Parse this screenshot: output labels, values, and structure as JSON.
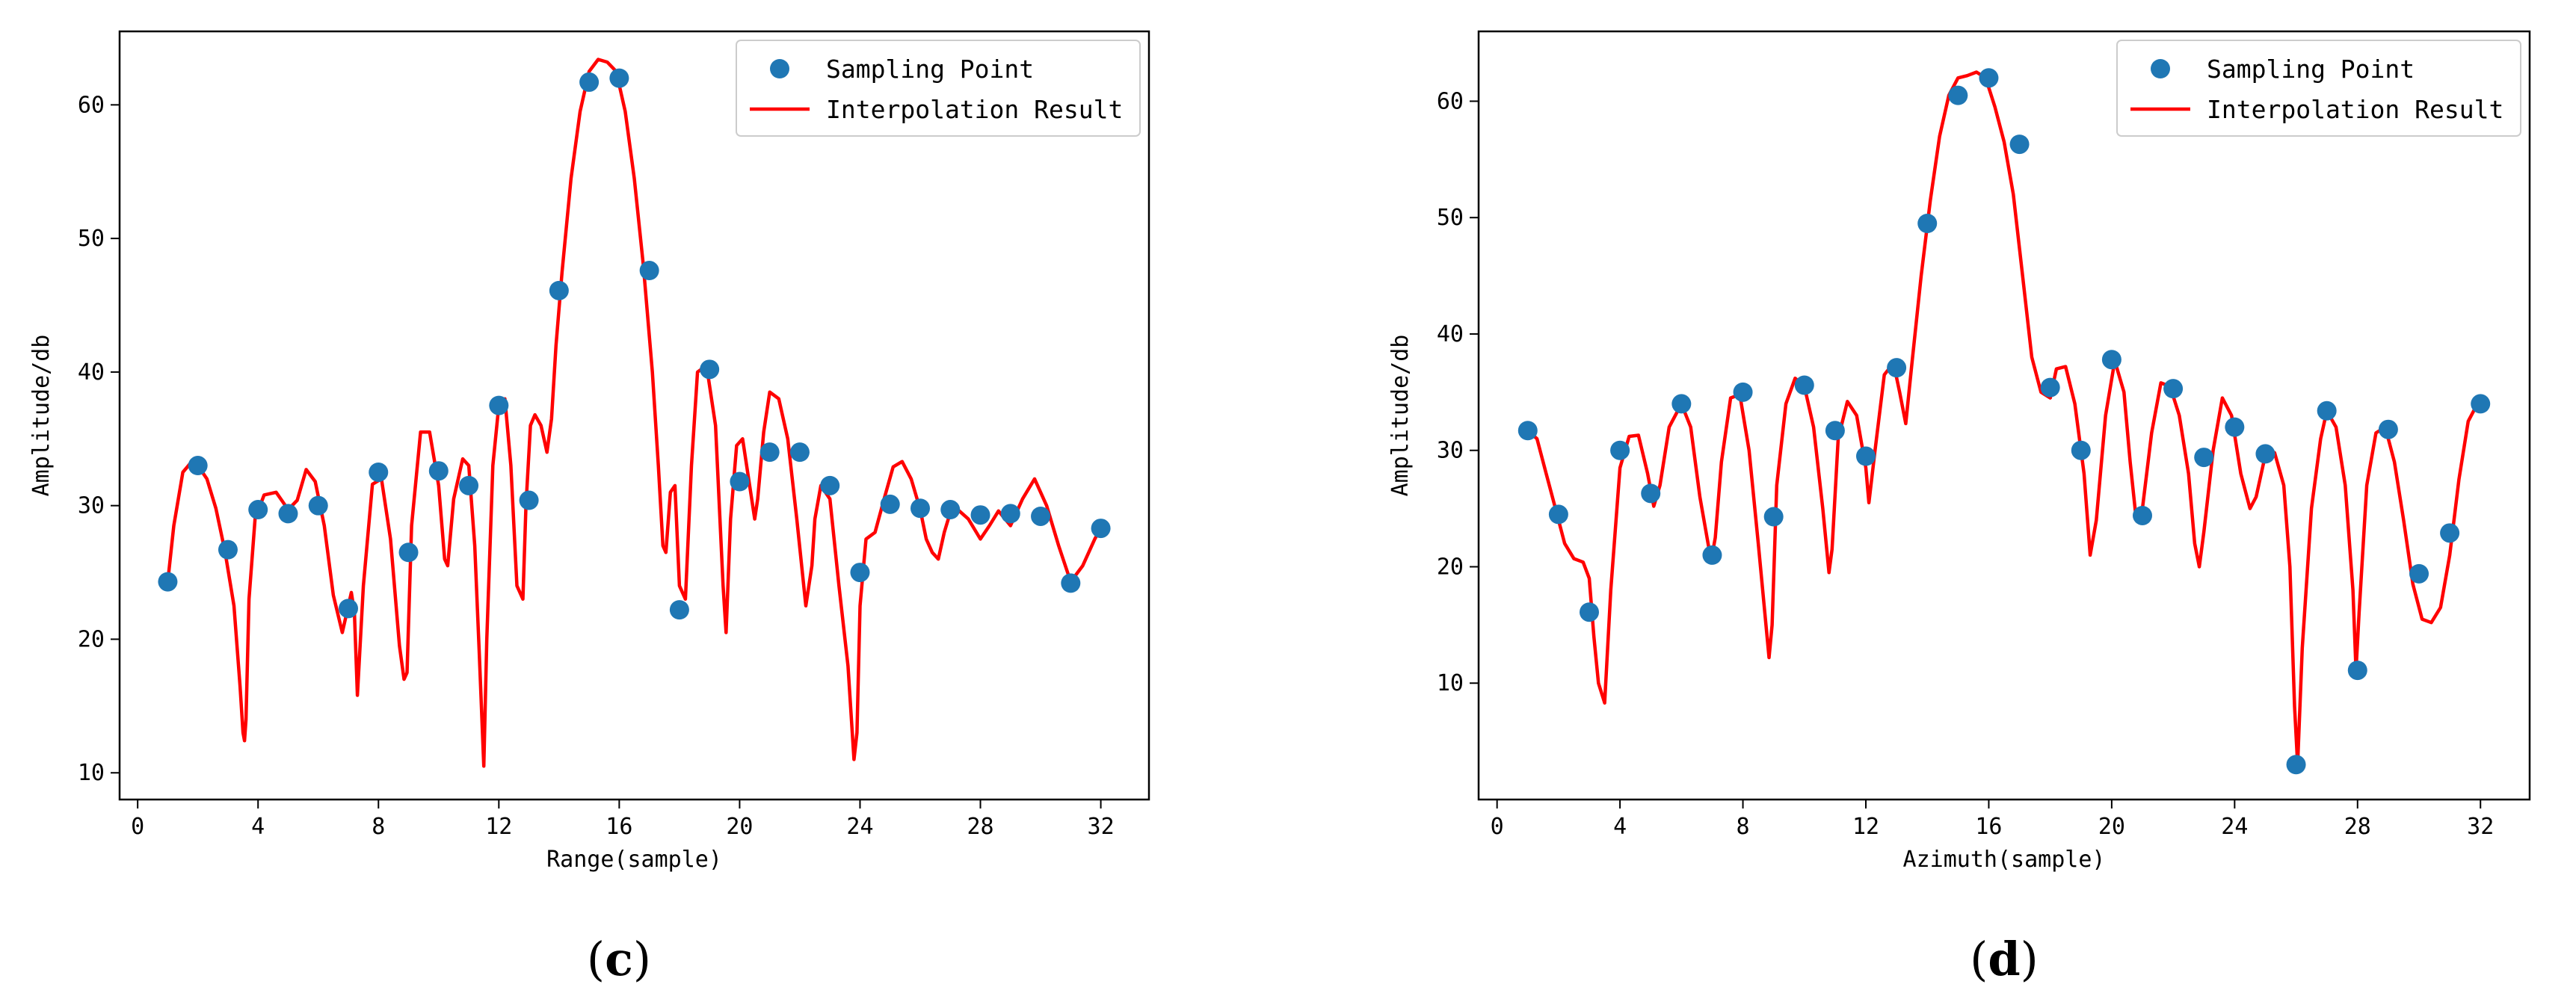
{
  "colors": {
    "points": "#1f77b4",
    "curve": "#ff0000",
    "frame": "#000000"
  },
  "chart_data": [
    {
      "id": "c",
      "type": "line",
      "panel_label": "c",
      "title": "",
      "xlabel": "Range(sample)",
      "ylabel": "Amplitude/db",
      "xlim": [
        -0.6,
        33.6
      ],
      "ylim": [
        8,
        65.5
      ],
      "xticks": [
        0,
        4,
        8,
        12,
        16,
        20,
        24,
        28,
        32
      ],
      "yticks": [
        10,
        20,
        30,
        40,
        50,
        60
      ],
      "xtick_labels": [
        "0",
        "4",
        "8",
        "12",
        "16",
        "20",
        "24",
        "28",
        "32"
      ],
      "ytick_labels": [
        "10",
        "20",
        "30",
        "40",
        "50",
        "60"
      ],
      "legend": [
        "Sampling Point",
        "Interpolation Result"
      ],
      "legend_loc": "upper right",
      "series": [
        {
          "name": "Sampling Point",
          "kind": "scatter",
          "x": [
            1,
            2,
            3,
            4,
            5,
            6,
            7,
            8,
            9,
            10,
            11,
            12,
            13,
            14,
            15,
            16,
            17,
            18,
            19,
            20,
            21,
            22,
            23,
            24,
            25,
            26,
            27,
            28,
            29,
            30,
            31,
            32
          ],
          "y": [
            24.3,
            33.0,
            26.7,
            29.7,
            29.4,
            30.0,
            22.3,
            32.5,
            26.5,
            32.6,
            31.5,
            37.5,
            30.4,
            46.1,
            61.7,
            62.0,
            47.6,
            22.2,
            40.2,
            31.8,
            34.0,
            34.0,
            31.5,
            25.0,
            30.1,
            29.8,
            29.7,
            29.3,
            29.4,
            29.2,
            24.2,
            28.3
          ]
        },
        {
          "name": "Interpolation Result",
          "kind": "line",
          "x": [
            1,
            1.2,
            1.5,
            1.8,
            2,
            2.3,
            2.6,
            2.9,
            3.2,
            3.4,
            3.5,
            3.55,
            3.6,
            3.7,
            3.9,
            4.2,
            4.6,
            5,
            5.3,
            5.6,
            5.9,
            6.2,
            6.5,
            6.8,
            7.0,
            7.1,
            7.2,
            7.3,
            7.5,
            7.8,
            8.1,
            8.4,
            8.7,
            8.85,
            8.95,
            9.1,
            9.4,
            9.7,
            10,
            10.2,
            10.3,
            10.5,
            10.8,
            11,
            11.2,
            11.35,
            11.5,
            11.6,
            11.8,
            12,
            12.2,
            12.4,
            12.6,
            12.8,
            12.9,
            13.05,
            13.2,
            13.4,
            13.6,
            13.75,
            13.9,
            14.1,
            14.4,
            14.7,
            15,
            15.3,
            15.6,
            15.9,
            16.2,
            16.5,
            16.8,
            17.1,
            17.3,
            17.45,
            17.55,
            17.7,
            17.85,
            18.0,
            18.2,
            18.4,
            18.6,
            18.9,
            19.2,
            19.45,
            19.55,
            19.7,
            19.9,
            20.1,
            20.3,
            20.5,
            20.6,
            20.8,
            21.0,
            21.3,
            21.6,
            21.9,
            22.2,
            22.4,
            22.5,
            22.7,
            23.0,
            23.3,
            23.6,
            23.8,
            23.9,
            24.0,
            24.2,
            24.5,
            24.8,
            25.1,
            25.4,
            25.7,
            26,
            26.2,
            26.4,
            26.6,
            26.8,
            27,
            27.3,
            27.6,
            28,
            28.3,
            28.6,
            29,
            29.4,
            29.8,
            30.2,
            30.6,
            31,
            31.4,
            31.8,
            32
          ],
          "y": [
            24.3,
            28.5,
            32.5,
            33.3,
            33.0,
            32.0,
            29.8,
            26.6,
            22.5,
            16.5,
            13.0,
            12.4,
            14.0,
            23.0,
            29.0,
            30.8,
            31.0,
            29.7,
            30.4,
            32.7,
            31.8,
            28.5,
            23.3,
            20.5,
            22.5,
            23.5,
            22.0,
            15.8,
            24.0,
            31.6,
            32.0,
            27.5,
            19.5,
            17.0,
            17.5,
            28.5,
            35.5,
            35.5,
            31.5,
            26.0,
            25.5,
            30.5,
            33.5,
            33.0,
            27.0,
            19.0,
            10.5,
            20.0,
            33.0,
            37.5,
            38.0,
            33.0,
            24.0,
            23.0,
            30.0,
            36.0,
            36.8,
            36.0,
            34.0,
            36.5,
            42.0,
            47.5,
            54.5,
            59.5,
            62.5,
            63.4,
            63.2,
            62.5,
            59.5,
            54.5,
            48.0,
            40.0,
            33.0,
            27.0,
            26.5,
            31.0,
            31.5,
            24.0,
            23.0,
            33.0,
            40.0,
            40.5,
            36.0,
            24.0,
            20.5,
            29.0,
            34.5,
            35.0,
            32.0,
            29.0,
            30.5,
            35.5,
            38.5,
            38.0,
            35.0,
            29.0,
            22.5,
            25.5,
            29.0,
            31.5,
            30.5,
            24.0,
            18.0,
            11.0,
            13.0,
            22.5,
            27.5,
            28.0,
            30.5,
            32.9,
            33.3,
            32.0,
            29.7,
            27.5,
            26.5,
            26.0,
            28.0,
            29.5,
            29.6,
            29.0,
            27.5,
            28.5,
            29.6,
            28.5,
            30.5,
            32.0,
            30.0,
            27.0,
            24.3,
            25.5,
            27.5,
            28.3
          ]
        }
      ]
    },
    {
      "id": "d",
      "type": "line",
      "panel_label": "d",
      "title": "",
      "xlabel": "Azimuth(sample)",
      "ylabel": "Amplitude/db",
      "xlim": [
        -0.6,
        33.6
      ],
      "ylim": [
        0,
        66
      ],
      "xticks": [
        0,
        4,
        8,
        12,
        16,
        20,
        24,
        28,
        32
      ],
      "yticks": [
        10,
        20,
        30,
        40,
        50,
        60
      ],
      "xtick_labels": [
        "0",
        "4",
        "8",
        "12",
        "16",
        "20",
        "24",
        "28",
        "32"
      ],
      "ytick_labels": [
        "10",
        "20",
        "30",
        "40",
        "50",
        "60"
      ],
      "legend": [
        "Sampling Point",
        "Interpolation Result"
      ],
      "legend_loc": "upper right",
      "series": [
        {
          "name": "Sampling Point",
          "kind": "scatter",
          "x": [
            1,
            2,
            3,
            4,
            5,
            6,
            7,
            8,
            9,
            10,
            11,
            12,
            13,
            14,
            15,
            16,
            17,
            18,
            19,
            20,
            21,
            22,
            23,
            24,
            25,
            26,
            27,
            28,
            29,
            30,
            31,
            32
          ],
          "y": [
            31.7,
            24.5,
            16.1,
            30.0,
            26.3,
            34.0,
            21.0,
            35.0,
            24.3,
            35.6,
            31.7,
            29.5,
            37.1,
            49.5,
            60.5,
            62.0,
            56.3,
            35.4,
            30.0,
            37.8,
            24.4,
            35.3,
            29.4,
            32.0,
            29.7,
            3.0,
            33.4,
            11.1,
            31.8,
            19.4,
            22.9,
            34.0
          ]
        },
        {
          "name": "Interpolation Result",
          "kind": "line",
          "x": [
            1,
            1.3,
            1.6,
            1.9,
            2.2,
            2.5,
            2.8,
            3.0,
            3.15,
            3.3,
            3.5,
            3.7,
            4,
            4.3,
            4.6,
            4.9,
            5.1,
            5.3,
            5.6,
            6,
            6.3,
            6.6,
            6.9,
            7.0,
            7.1,
            7.3,
            7.6,
            7.9,
            8.2,
            8.5,
            8.75,
            8.85,
            8.95,
            9.1,
            9.4,
            9.7,
            10,
            10.3,
            10.6,
            10.8,
            10.9,
            11.1,
            11.4,
            11.7,
            12,
            12.1,
            12.3,
            12.6,
            12.9,
            13.1,
            13.3,
            13.5,
            13.8,
            14.1,
            14.4,
            14.7,
            15,
            15.3,
            15.6,
            15.9,
            16.2,
            16.5,
            16.8,
            17.1,
            17.4,
            17.7,
            18.0,
            18.2,
            18.5,
            18.8,
            19.1,
            19.3,
            19.5,
            19.8,
            20.1,
            20.4,
            20.6,
            20.8,
            21.0,
            21.3,
            21.6,
            21.9,
            22.2,
            22.5,
            22.7,
            22.85,
            23.0,
            23.3,
            23.6,
            23.9,
            24.2,
            24.5,
            24.7,
            25.0,
            25.3,
            25.6,
            25.8,
            25.95,
            26.05,
            26.2,
            26.5,
            26.8,
            27.0,
            27.3,
            27.6,
            27.85,
            27.95,
            28.05,
            28.3,
            28.6,
            28.9,
            29.2,
            29.5,
            29.8,
            30.1,
            30.4,
            30.7,
            31.0,
            31.3,
            31.6,
            31.9,
            32
          ],
          "y": [
            31.7,
            31.0,
            28.0,
            25.0,
            22.0,
            20.7,
            20.4,
            19.0,
            14.0,
            10.0,
            8.3,
            18.0,
            28.5,
            31.2,
            31.3,
            28.0,
            25.2,
            27.0,
            32.0,
            34.0,
            32.0,
            26.0,
            21.5,
            21.0,
            22.5,
            29.0,
            34.5,
            34.8,
            30.0,
            22.0,
            15.0,
            12.2,
            15.0,
            27.0,
            34.0,
            36.2,
            35.5,
            32.0,
            25.0,
            19.5,
            21.5,
            31.0,
            34.2,
            33.0,
            28.5,
            25.5,
            30.0,
            36.5,
            37.5,
            35.0,
            32.3,
            37.5,
            45.0,
            51.5,
            57.0,
            60.5,
            62.0,
            62.2,
            62.5,
            62.0,
            59.5,
            56.5,
            52.0,
            45.0,
            38.0,
            35.0,
            34.5,
            37.0,
            37.2,
            34.0,
            28.0,
            21.0,
            24.0,
            33.0,
            37.7,
            35.0,
            29.0,
            24.0,
            25.0,
            31.5,
            35.8,
            35.5,
            33.0,
            28.0,
            22.0,
            20.0,
            23.0,
            30.0,
            34.5,
            33.0,
            28.0,
            25.0,
            26.0,
            29.6,
            29.8,
            27.0,
            20.0,
            8.0,
            3.0,
            13.0,
            25.0,
            31.0,
            33.4,
            32.0,
            27.0,
            18.0,
            11.1,
            16.0,
            27.0,
            31.5,
            32.0,
            29.0,
            24.0,
            18.5,
            15.5,
            15.2,
            16.5,
            21.0,
            27.5,
            32.5,
            34.0,
            34.0
          ]
        }
      ]
    }
  ]
}
